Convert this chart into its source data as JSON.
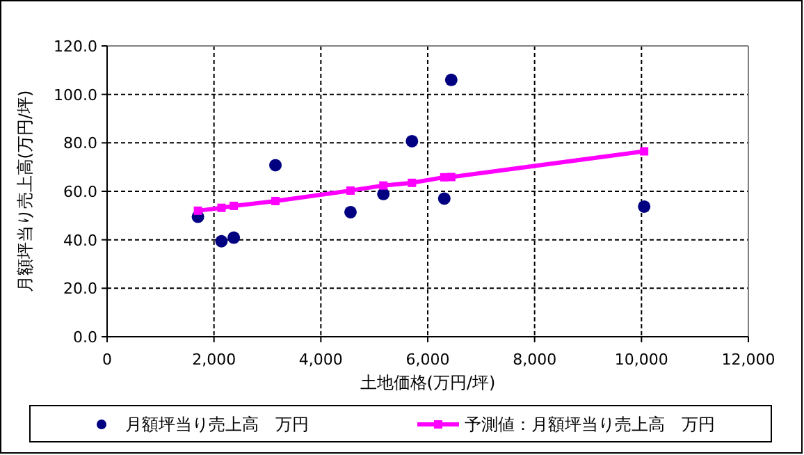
{
  "chart_data": {
    "type": "scatter",
    "xlabel": "土地価格(万円/坪)",
    "ylabel": "月額坪当り売上高(万円/坪)",
    "x": [
      1700,
      2140,
      2370,
      3150,
      4555,
      5170,
      5705,
      6310,
      6440,
      10050
    ],
    "series": [
      {
        "name": "月額坪当り売上高　万円",
        "color": "#000080",
        "type": "scatter",
        "marker": "circle",
        "values": [
          49.5,
          39.4,
          40.9,
          70.8,
          51.4,
          58.9,
          80.7,
          57.0,
          106.0,
          53.7
        ]
      },
      {
        "name": "予測値：月額坪当り売上高　万円",
        "color": "#ff00ff",
        "type": "line",
        "marker": "square",
        "line_style": "solid",
        "values": [
          52.0,
          53.2,
          54.0,
          56.0,
          60.3,
          62.4,
          63.5,
          65.8,
          65.9,
          76.5
        ]
      }
    ],
    "xlim": [
      0,
      12000
    ],
    "ylim": [
      0,
      120
    ],
    "xticks": [
      0,
      {
        "value": 2000,
        "label": "2,000"
      },
      {
        "value": 4000,
        "label": "4,000"
      },
      {
        "value": 6000,
        "label": "6,000"
      },
      {
        "value": 8000,
        "label": "8,000"
      },
      {
        "value": 10000,
        "label": "10,000"
      },
      {
        "value": 12000,
        "label": "12,000"
      }
    ],
    "yticks": [
      {
        "value": 0,
        "label": "0.0"
      },
      {
        "value": 20,
        "label": "20.0"
      },
      {
        "value": 40,
        "label": "40.0"
      },
      {
        "value": 60,
        "label": "60.0"
      },
      {
        "value": 80,
        "label": "80.0"
      },
      {
        "value": 100,
        "label": "100.0"
      },
      {
        "value": 120,
        "label": "120.0"
      }
    ],
    "grid": true,
    "legend": "bottom"
  }
}
